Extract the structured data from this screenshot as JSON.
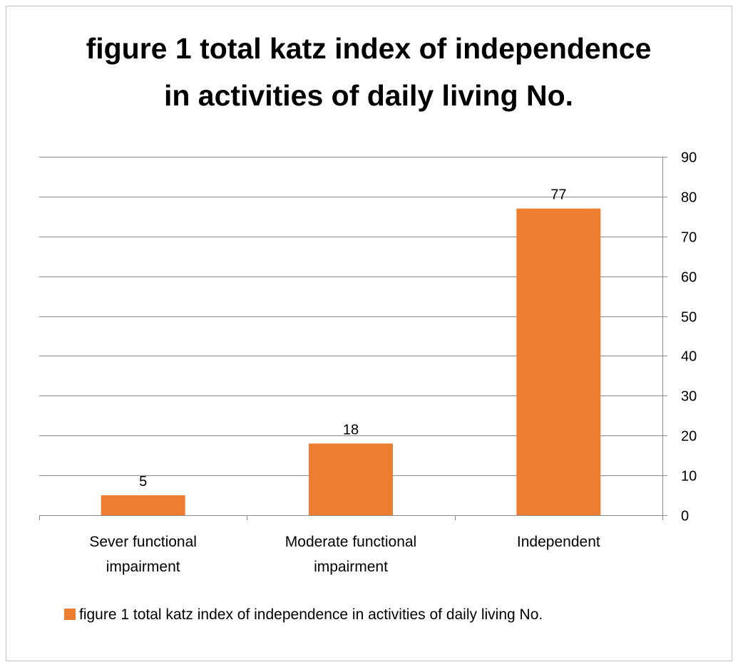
{
  "colors": {
    "bar": "#ED7D31",
    "grid": "#8c8c8c",
    "frame": "#bfbfbf",
    "text": "#000000"
  },
  "chart_data": {
    "type": "bar",
    "title_lines": [
      "figure 1 total katz index of independence",
      "in activities of daily living No."
    ],
    "categories": [
      [
        "Sever functional",
        "impairment"
      ],
      [
        "Moderate functional",
        "impairment"
      ],
      [
        "Independent"
      ]
    ],
    "series": [
      {
        "name": "figure 1 total katz index of independence in activities of daily living No.",
        "values": [
          5,
          18,
          77
        ],
        "data_labels": [
          "5",
          "18",
          "77"
        ]
      }
    ],
    "ylim": [
      0,
      90
    ],
    "y_ticks": [
      "0",
      "10",
      "20",
      "30",
      "40",
      "50",
      "60",
      "70",
      "80",
      "90"
    ],
    "y_axis_side": "right",
    "grid": true,
    "legend_position": "bottom"
  }
}
